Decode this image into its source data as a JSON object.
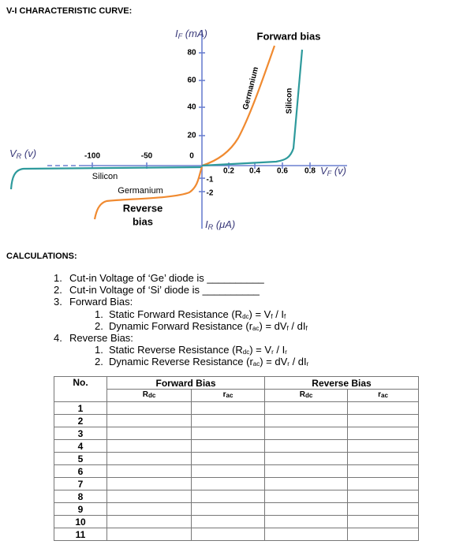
{
  "title": "V-I CHARACTERISTIC CURVE:",
  "graph": {
    "y_axis_label": [
      "I",
      "F",
      " (mA)"
    ],
    "x_axis_label": [
      "V",
      "F",
      " (v)"
    ],
    "neg_x_axis_label": [
      "V",
      "R",
      " (v)"
    ],
    "neg_y_axis_label": [
      "I",
      "R",
      " (μA)"
    ],
    "yticks": [
      "80",
      "60",
      "40",
      "20",
      "0"
    ],
    "neg_xticks": [
      "-100",
      "-50"
    ],
    "xticks": [
      "0.2",
      "0.4",
      "0.6",
      "0.8"
    ],
    "neg_yticks": [
      "-1",
      "-2"
    ],
    "labels": {
      "forward": "Forward bias",
      "germanium_fwd": "Germanium",
      "silicon_fwd": "Silicon",
      "silicon_rev": "Silicon",
      "germanium_rev": "Germanium",
      "reverse": [
        "Reverse",
        "bias"
      ]
    }
  },
  "calculations": {
    "heading": "CALCULATIONS:",
    "items": [
      {
        "number": "1.",
        "text": [
          "Cut-in Voltage of ‘Ge’ diode is __________"
        ]
      },
      {
        "number": "2.",
        "text": [
          "Cut-in Voltage of ‘Si’ diode is __________"
        ]
      },
      {
        "number": "3.",
        "text": [
          "Forward Bias:"
        ],
        "subitems": [
          {
            "number": "1.",
            "text": [
              "Static Forward Resistance (R",
              "dc",
              ") = V",
              "f",
              " / I",
              "f"
            ]
          },
          {
            "number": "2.",
            "text": [
              "Dynamic Forward Resistance (r",
              "ac",
              ") = dV",
              "f",
              " / dI",
              "f"
            ]
          }
        ]
      },
      {
        "number": "4.",
        "text": [
          "Reverse Bias:"
        ],
        "subitems": [
          {
            "number": "1.",
            "text": [
              "Static Reverse Resistance (R",
              "dc",
              ") = V",
              "r",
              " / I",
              "r"
            ]
          },
          {
            "number": "2.",
            "text": [
              "Dynamic Reverse Resistance (r",
              "ac",
              ") = dV",
              "r",
              " / dI",
              "r"
            ]
          }
        ]
      }
    ]
  },
  "table": {
    "headers": [
      "No.",
      "Forward Bias",
      "Reverse Bias"
    ],
    "subheaders": [
      [
        "R",
        "dc"
      ],
      [
        "r",
        "ac"
      ],
      [
        "R",
        "dc"
      ],
      [
        "r",
        "ac"
      ]
    ],
    "rows": [
      "1",
      "2",
      "3",
      "4",
      "5",
      "6",
      "7",
      "8",
      "9",
      "10",
      "11"
    ]
  }
}
